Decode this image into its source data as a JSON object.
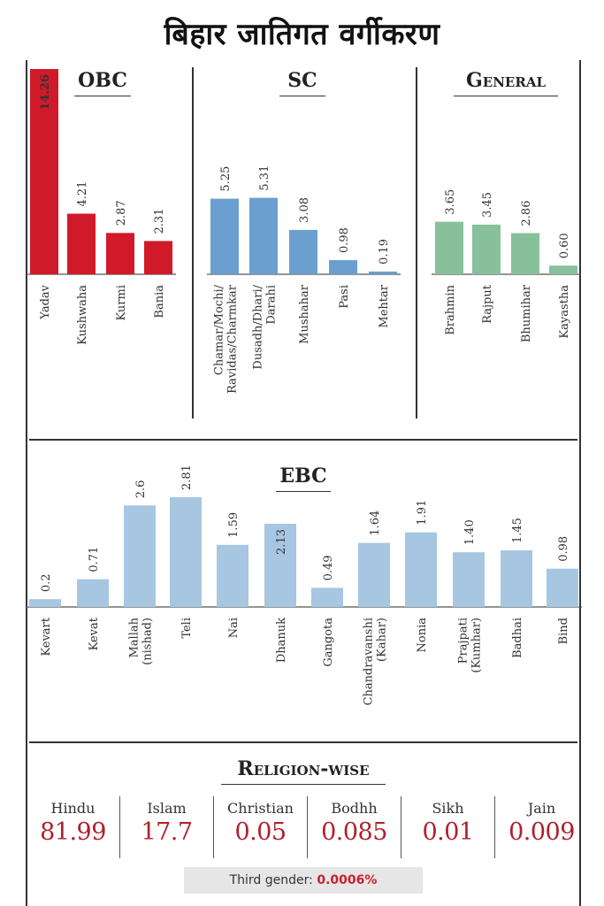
{
  "title": "बिहार जातिगत वर्गीकरण",
  "colors": {
    "obc": "#d01a2a",
    "sc": "#6a9fd0",
    "general": "#88c09c",
    "ebc": "#a7c6e2",
    "religion_value": "#b0202e",
    "third_gender_value": "#c8202e"
  },
  "chart_data": [
    {
      "type": "bar",
      "title": "OBC",
      "categories": [
        "Yadav",
        "Kushwaha",
        "Kurmi",
        "Bania"
      ],
      "values": [
        14.26,
        4.21,
        2.87,
        2.31
      ],
      "value_labels": [
        "14.26",
        "4.21",
        "2.87",
        "2.31"
      ],
      "ylim": [
        0,
        14.26
      ],
      "grid": false
    },
    {
      "type": "bar",
      "title": "SC",
      "categories": [
        "Chamar/Mochi/ Ravidas/Charmkar",
        "Dusadh/Dhari/ Darahi",
        "Mushahar",
        "Pasi",
        "Mehtar"
      ],
      "values": [
        5.25,
        5.31,
        3.08,
        0.98,
        0.19
      ],
      "value_labels": [
        "5.25",
        "5.31",
        "3.08",
        "0.98",
        "0.19"
      ],
      "ylim": [
        0,
        14.26
      ],
      "grid": false
    },
    {
      "type": "bar",
      "title": "General",
      "categories": [
        "Brahmin",
        "Rajput",
        "Bhumihar",
        "Kayastha"
      ],
      "values": [
        3.65,
        3.45,
        2.86,
        0.6
      ],
      "value_labels": [
        "3.65",
        "3.45",
        "2.86",
        "0.60"
      ],
      "ylim": [
        0,
        14.26
      ],
      "grid": false
    },
    {
      "type": "bar",
      "title": "EBC",
      "categories": [
        "Kevart",
        "Kevat",
        "Mallah (nishad)",
        "Teli",
        "Nai",
        "Dhanuk",
        "Gangota",
        "Chandravanshi (Kahar)",
        "Nonia",
        "Prajpati (Kumhar)",
        "Badhai",
        "Bind"
      ],
      "values": [
        0.2,
        0.71,
        2.6,
        2.81,
        1.59,
        2.13,
        0.49,
        1.64,
        1.91,
        1.4,
        1.45,
        0.98
      ],
      "value_labels": [
        "0.2",
        "0.71",
        "2.6",
        "2.81",
        "1.59",
        "2.13",
        "0.49",
        "1.64",
        "1.91",
        "1.40",
        "1.45",
        "0.98"
      ],
      "ylim": [
        0,
        2.81
      ],
      "grid": false
    }
  ],
  "religion": {
    "title": "Religion-wise",
    "items": [
      {
        "name": "Hindu",
        "value": "81.99"
      },
      {
        "name": "Islam",
        "value": "17.7"
      },
      {
        "name": "Christian",
        "value": "0.05"
      },
      {
        "name": "Bodhh",
        "value": "0.085"
      },
      {
        "name": "Sikh",
        "value": "0.01"
      },
      {
        "name": "Jain",
        "value": "0.009"
      }
    ]
  },
  "third_gender": {
    "label": "Third gender:",
    "value": "0.0006%"
  }
}
